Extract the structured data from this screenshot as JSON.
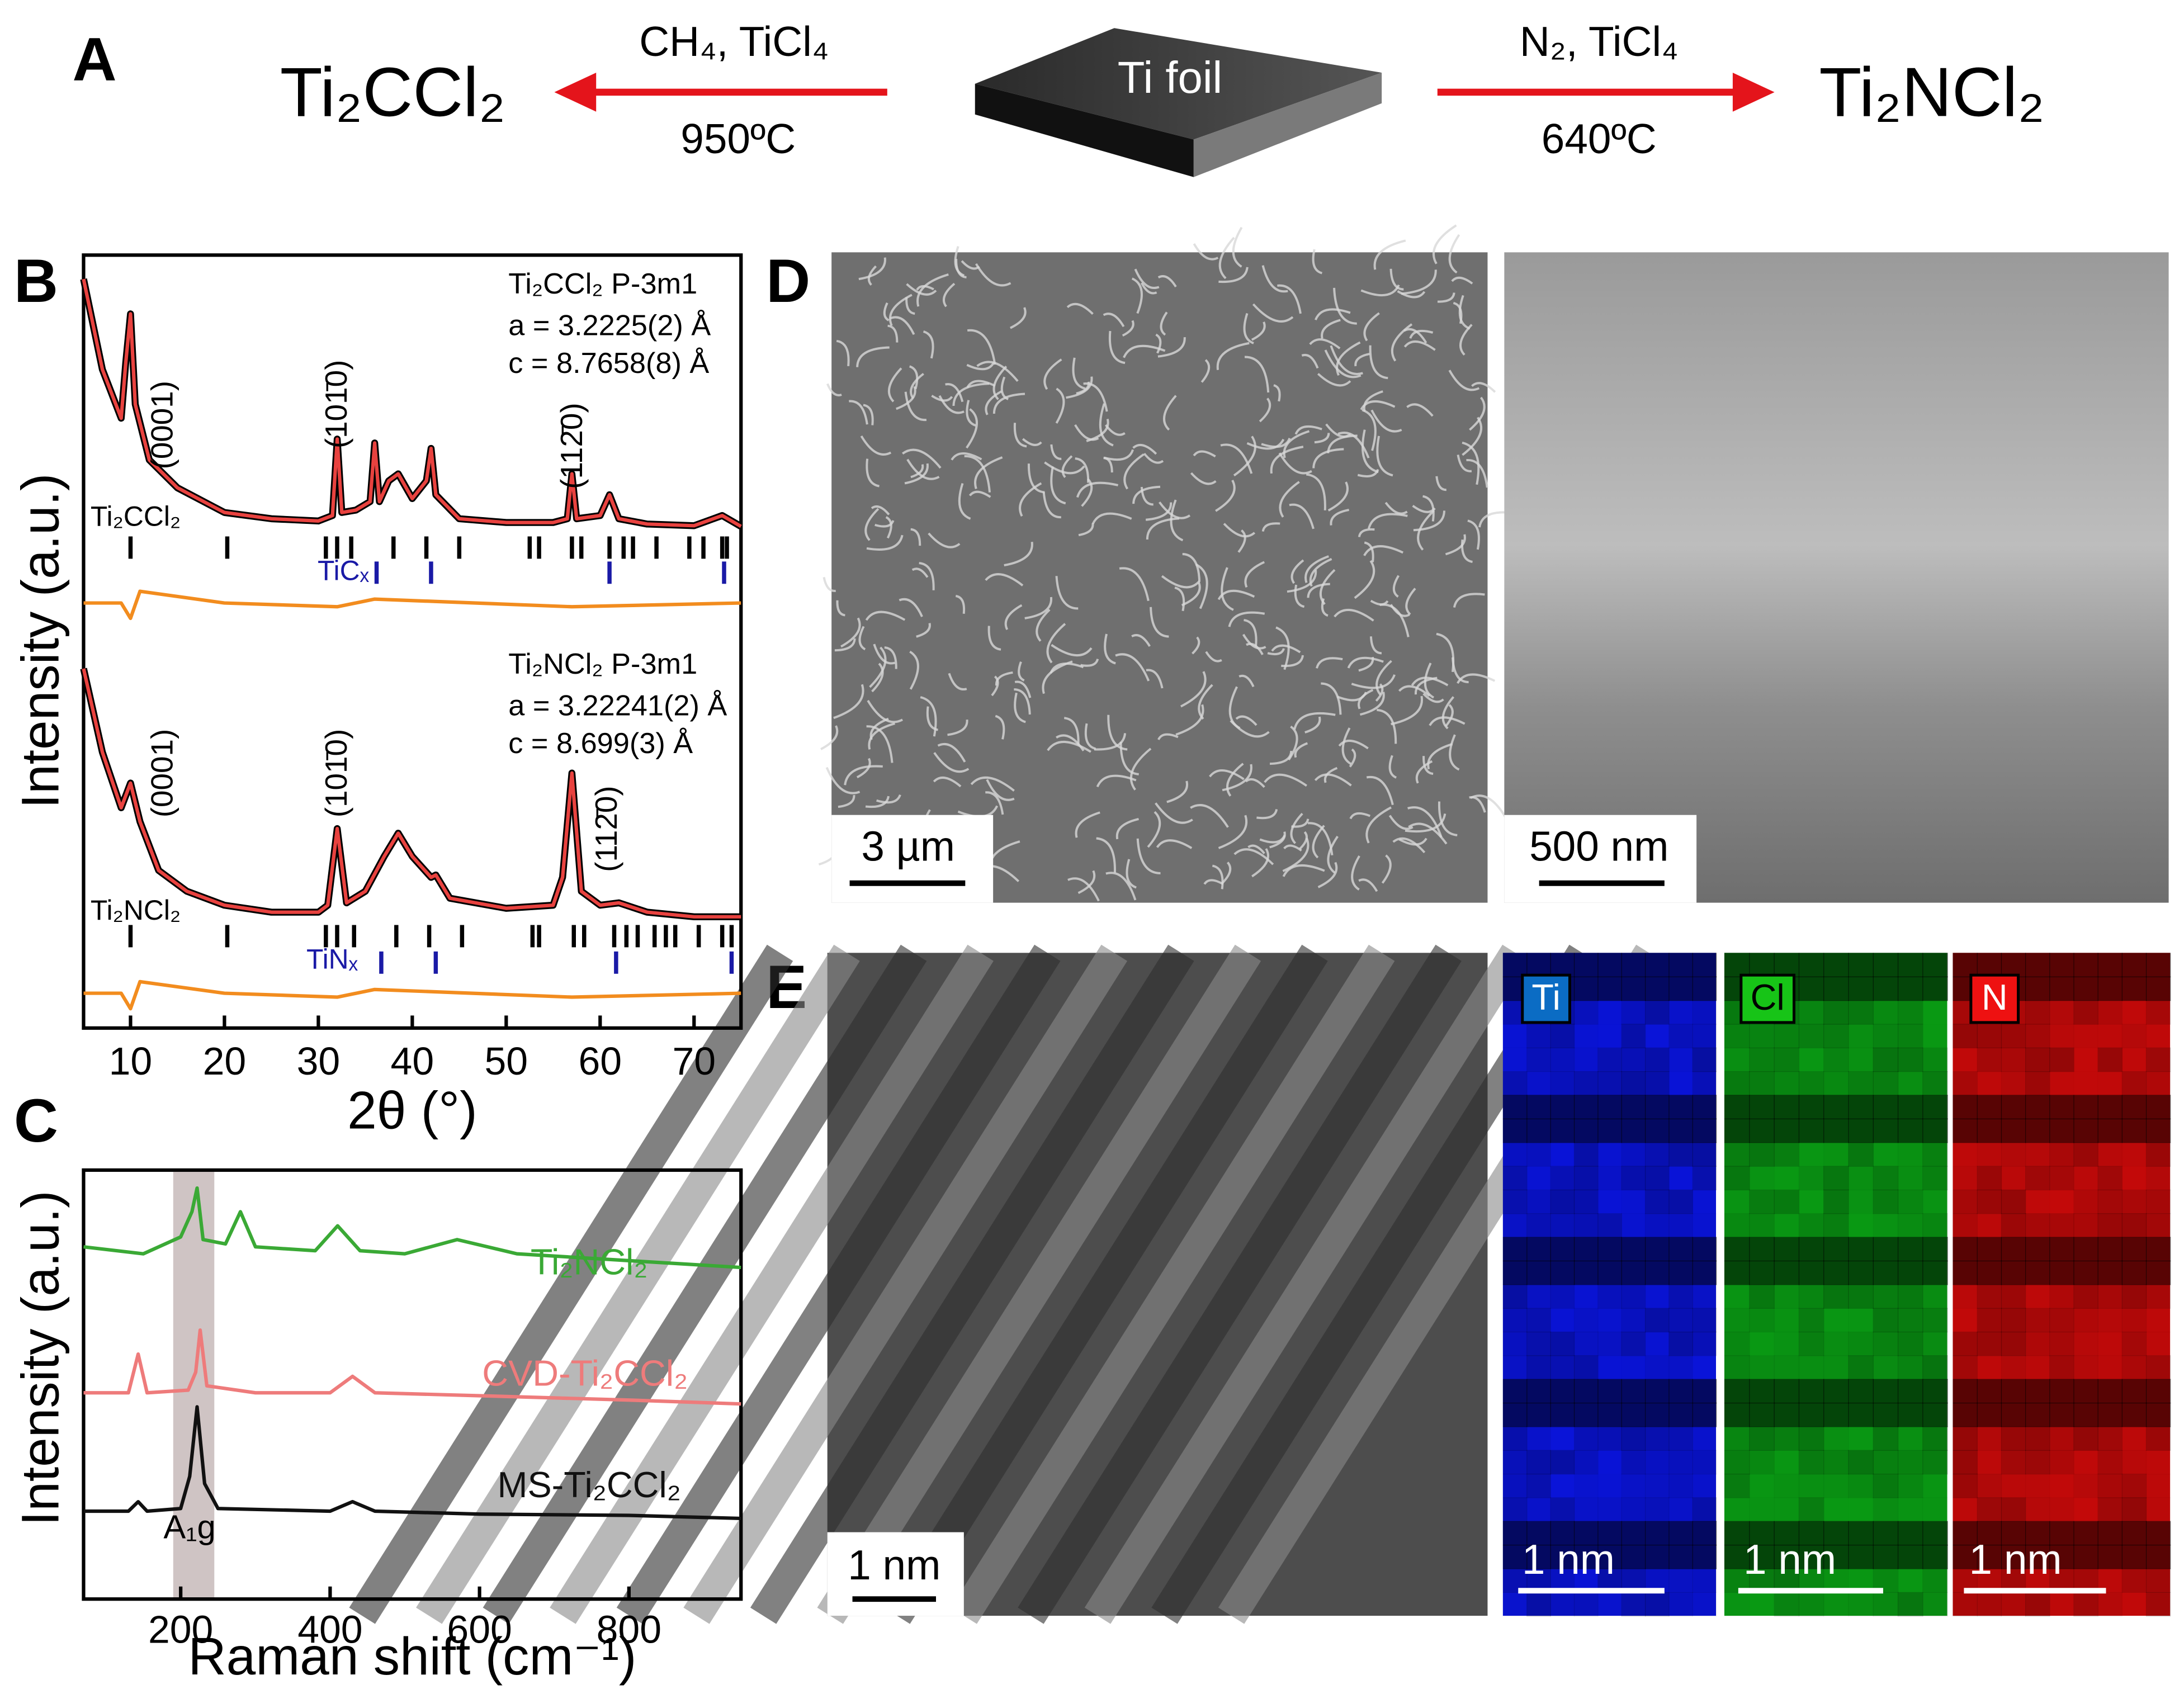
{
  "panel_labels": [
    "A",
    "B",
    "C",
    "D",
    "E"
  ],
  "scheme": {
    "left_product": "Ti₂CCl₂",
    "left_reagents": "CH₄, TiCl₄",
    "left_temperature": "950ºC",
    "substrate": "Ti foil",
    "right_reagents": "N₂, TiCl₄",
    "right_temperature": "640ºC",
    "right_product": "Ti₂NCl₂"
  },
  "images": {
    "sem_top": {
      "scale_bar": "3 µm"
    },
    "sem_cross": {
      "scale_bar": "500 nm"
    },
    "tem": {
      "scale_bar": "1 nm"
    },
    "maps": [
      {
        "element": "Ti",
        "scale_bar": "1 nm"
      },
      {
        "element": "Cl",
        "scale_bar": "1 nm"
      },
      {
        "element": "N",
        "scale_bar": "1 nm"
      }
    ]
  },
  "chart_data": [
    {
      "type": "line",
      "xlabel": "2θ (°)",
      "ylabel": "Intensity (a.u.)",
      "xlim": [
        5,
        75
      ],
      "xticks": [
        10,
        20,
        30,
        40,
        50,
        60,
        70
      ],
      "ylim": [
        0,
        100
      ],
      "annotations": [
        "Ti₂CCl₂  P-3m1",
        "a = 3.2225(2) Å",
        "c = 8.7658(8) Å",
        "(0001)",
        "(101̄0)",
        "(112̄0)",
        "Ti₂NCl₂  P-3m1",
        "a = 3.22241(2) Å",
        "c = 8.699(3) Å",
        "(0001)",
        "(101̄0)",
        "(112̄0)"
      ],
      "series": [
        {
          "color": "#e8423f",
          "x": [
            5,
            7,
            9,
            9.5,
            10,
            10.5,
            12,
            15,
            20,
            25,
            30,
            31.5,
            32,
            32.5,
            34,
            35.5,
            36,
            36.5,
            37.5,
            38.5,
            40,
            41.5,
            42,
            42.5,
            45,
            50,
            55,
            56.5,
            57,
            57.5,
            60,
            61,
            62,
            65,
            70,
            73,
            75
          ],
          "values": [
            96.9,
            85.2,
            78.9,
            86.1,
            92.4,
            80.7,
            73.5,
            69.9,
            66.7,
            65.9,
            65.6,
            66.3,
            76.2,
            66.7,
            67.0,
            68.1,
            75.7,
            68.1,
            70.8,
            71.7,
            68.5,
            70.8,
            75.0,
            69.0,
            65.9,
            65.4,
            65.4,
            65.9,
            71.7,
            65.9,
            66.3,
            69.0,
            65.9,
            65.2,
            65.0,
            66.3,
            64.9
          ]
        },
        {
          "color": "#f28c1e",
          "x": [
            5,
            9,
            10,
            11,
            20,
            32,
            36,
            57,
            75
          ],
          "values": [
            55,
            55,
            53,
            56.5,
            55,
            54.5,
            55.5,
            54.5,
            55
          ]
        },
        {
          "color": "#e8423f",
          "x": [
            5,
            7,
            9,
            10,
            11,
            13,
            16,
            20,
            25,
            30,
            31,
            32,
            33,
            35,
            37,
            38.5,
            40,
            42,
            42.5,
            44,
            50,
            55,
            56,
            57,
            58,
            60,
            62,
            65,
            70,
            75
          ],
          "values": [
            46.5,
            35.7,
            28.5,
            31.7,
            26.7,
            20.4,
            17.7,
            15.9,
            15.0,
            15.0,
            15.9,
            25.8,
            16.2,
            17.7,
            22.2,
            25.2,
            22.2,
            19.5,
            19.8,
            16.8,
            15.5,
            15.9,
            19.5,
            33.0,
            17.7,
            15.9,
            16.2,
            15.0,
            14.4,
            14.4
          ]
        },
        {
          "color": "#f28c1e",
          "x": [
            5,
            9,
            10,
            11,
            20,
            32,
            36,
            57,
            75
          ],
          "values": [
            4.5,
            4.5,
            2.5,
            6,
            4.5,
            4,
            5,
            4,
            4.5
          ]
        }
      ],
      "reflections": [
        {
          "name": "Ti₂CCl₂",
          "color": "#000000",
          "positions": [
            10,
            20.3,
            30.8,
            32,
            33.5,
            38,
            41.5,
            45,
            52.5,
            53.5,
            57,
            58,
            61,
            62.5,
            63.5,
            66,
            69.5,
            71,
            73,
            73.5
          ]
        },
        {
          "name": "TiCₓ",
          "color": "#1a1aa6",
          "positions": [
            36.2,
            42,
            61,
            73.2
          ]
        },
        {
          "name": "Ti₂NCl₂",
          "color": "#000000",
          "positions": [
            10,
            20.3,
            30.8,
            32,
            33.8,
            38.3,
            41.8,
            45.3,
            52.8,
            53.5,
            57.2,
            58.3,
            61.5,
            62.8,
            64,
            65.8,
            67,
            68,
            70.5,
            73,
            74
          ]
        },
        {
          "name": "TiNₓ",
          "color": "#1a1aa6",
          "positions": [
            36.7,
            42.5,
            61.7,
            74
          ]
        }
      ]
    },
    {
      "type": "line",
      "xlabel": "Raman shift (cm⁻¹)",
      "ylabel": "Intensity (a.u.)",
      "xlim": [
        70,
        950
      ],
      "xticks": [
        200,
        400,
        600,
        800
      ],
      "ylim": [
        0,
        100
      ],
      "highlight": {
        "range": [
          190,
          245
        ],
        "label": "A₁g"
      },
      "series": [
        {
          "name": "Ti₂NCl₂",
          "color": "#3aa935",
          "x": [
            70,
            150,
            200,
            215,
            222,
            230,
            260,
            280,
            300,
            380,
            410,
            440,
            500,
            570,
            650,
            800,
            950
          ],
          "values": [
            82.1,
            80.5,
            84.4,
            90.3,
            95.8,
            83.8,
            82.8,
            90.3,
            82.1,
            81.2,
            87.0,
            81.2,
            80.5,
            83.8,
            80.5,
            78.9,
            77.3
          ]
        },
        {
          "name": "CVD-Ti₂CCl₂",
          "color": "#ee7b7b",
          "x": [
            70,
            130,
            143,
            155,
            210,
            220,
            226,
            235,
            300,
            400,
            430,
            460,
            600,
            800,
            950
          ],
          "values": [
            48.1,
            48.1,
            57.1,
            48.1,
            48.7,
            52.9,
            62.7,
            49.7,
            48.1,
            48.1,
            51.9,
            48.1,
            47.4,
            46.4,
            45.5
          ]
        },
        {
          "name": "MS-Ti₂CCl₂",
          "color": "#111111",
          "x": [
            70,
            130,
            143,
            155,
            200,
            212,
            222,
            232,
            250,
            400,
            430,
            460,
            600,
            800,
            950
          ],
          "values": [
            20.5,
            20.5,
            22.7,
            20.5,
            21.1,
            28.6,
            44.8,
            26.9,
            21.1,
            20.5,
            22.7,
            20.5,
            19.8,
            19.5,
            18.8
          ]
        }
      ]
    }
  ]
}
